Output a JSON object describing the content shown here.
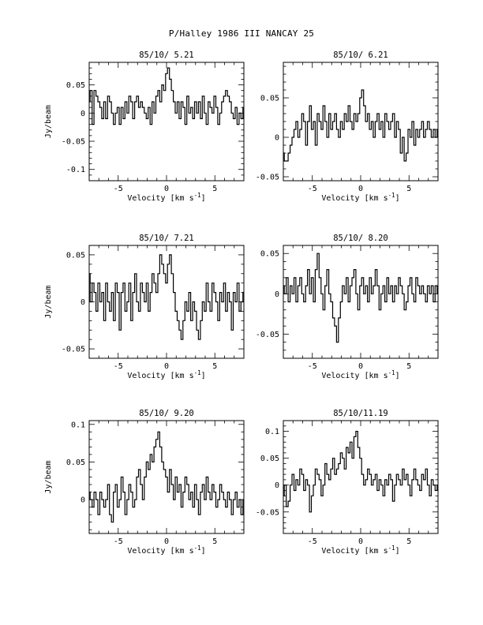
{
  "page": {
    "title": "P/Halley 1986 III   NANCAY     25"
  },
  "common": {
    "xlabel": "Velocity [km s",
    "xlabel_sup": "-1",
    "xlabel_close": "]",
    "ylabel": "Jy/beam"
  },
  "chart_data": [
    {
      "type": "line",
      "title": "85/10/ 5.21",
      "xlabel": "Velocity [km s-1]",
      "ylabel": "Jy/beam",
      "xlim": [
        -8,
        8
      ],
      "ylim": [
        -0.12,
        0.09
      ],
      "yticks": [
        0.05,
        0,
        -0.05,
        -0.1
      ],
      "ytick_labels": [
        "0.05",
        "0",
        "-0.05",
        "-0.1"
      ],
      "xticks": [
        -5,
        0,
        5
      ],
      "xtick_labels": [
        "-5",
        "0",
        "5"
      ],
      "series": [
        {
          "x0": -8,
          "dx": 0.2,
          "values": [
            0.02,
            0.04,
            -0.02,
            0.04,
            0.03,
            0.02,
            0.01,
            -0.01,
            0.02,
            -0.01,
            0.03,
            0.02,
            0.0,
            -0.02,
            0.0,
            0.01,
            -0.02,
            0.01,
            -0.01,
            0.02,
            0.0,
            0.03,
            0.02,
            -0.01,
            0.02,
            0.03,
            0.01,
            0.02,
            0.01,
            0.0,
            -0.01,
            0.01,
            -0.02,
            0.02,
            0.0,
            0.03,
            0.04,
            0.02,
            0.05,
            0.04,
            0.07,
            0.08,
            0.06,
            0.04,
            0.02,
            0.0,
            0.02,
            -0.01,
            0.02,
            0.01,
            -0.02,
            0.03,
            0.0,
            0.01,
            -0.01,
            0.02,
            0.0,
            0.02,
            -0.01,
            0.03,
            0.0,
            -0.02,
            0.02,
            0.01,
            0.0,
            0.03,
            0.01,
            -0.02,
            0.0,
            0.02,
            0.03,
            0.04,
            0.03,
            0.02,
            0.0,
            -0.01,
            0.01,
            -0.02,
            0.0,
            -0.01,
            0.01
          ]
        }
      ]
    },
    {
      "type": "line",
      "title": "85/10/ 6.21",
      "xlabel": "Velocity [km s-1]",
      "ylabel": "",
      "xlim": [
        -8,
        8
      ],
      "ylim": [
        -0.055,
        0.095
      ],
      "yticks": [
        0.05,
        0,
        -0.05
      ],
      "ytick_labels": [
        "0.05",
        "0",
        "-0.05"
      ],
      "xticks": [
        -5,
        0,
        5
      ],
      "xtick_labels": [
        "-5",
        "0",
        "5"
      ],
      "series": [
        {
          "x0": -8,
          "dx": 0.2,
          "values": [
            -0.02,
            -0.03,
            -0.03,
            -0.02,
            -0.01,
            0.0,
            0.01,
            0.02,
            0.0,
            0.01,
            0.03,
            0.02,
            -0.01,
            0.02,
            0.04,
            0.01,
            0.02,
            -0.01,
            0.03,
            0.02,
            0.01,
            0.04,
            0.02,
            0.0,
            0.03,
            0.01,
            0.02,
            0.03,
            0.01,
            0.0,
            0.02,
            0.01,
            0.03,
            0.02,
            0.04,
            0.02,
            0.01,
            0.03,
            0.02,
            0.03,
            0.05,
            0.06,
            0.04,
            0.02,
            0.03,
            0.01,
            0.02,
            0.0,
            0.02,
            0.03,
            0.01,
            0.02,
            0.0,
            0.03,
            0.02,
            0.01,
            0.02,
            0.03,
            0.0,
            0.02,
            0.01,
            -0.02,
            0.0,
            -0.03,
            -0.02,
            0.01,
            0.0,
            0.02,
            -0.01,
            0.01,
            0.0,
            0.01,
            0.02,
            0.0,
            0.01,
            0.02,
            0.01,
            0.0,
            0.01,
            0.0,
            0.01
          ]
        }
      ]
    },
    {
      "type": "line",
      "title": "85/10/ 7.21",
      "xlabel": "Velocity [km s-1]",
      "ylabel": "Jy/beam",
      "xlim": [
        -8,
        8
      ],
      "ylim": [
        -0.06,
        0.06
      ],
      "yticks": [
        0.05,
        0,
        -0.05
      ],
      "ytick_labels": [
        "0.05",
        "0",
        "-0.05"
      ],
      "xticks": [
        -5,
        0,
        5
      ],
      "xtick_labels": [
        "-5",
        "0",
        "5"
      ],
      "series": [
        {
          "x0": -8,
          "dx": 0.2,
          "values": [
            0.03,
            0.0,
            0.02,
            0.01,
            -0.01,
            0.02,
            0.0,
            0.01,
            -0.02,
            0.02,
            0.0,
            -0.01,
            0.01,
            -0.02,
            0.02,
            0.01,
            -0.03,
            0.01,
            0.02,
            -0.01,
            0.0,
            0.02,
            -0.02,
            0.01,
            0.03,
            0.0,
            -0.01,
            0.02,
            0.01,
            0.0,
            0.02,
            -0.01,
            0.01,
            0.03,
            0.02,
            0.01,
            0.03,
            0.05,
            0.04,
            0.03,
            0.02,
            0.04,
            0.05,
            0.03,
            0.01,
            -0.01,
            -0.02,
            -0.03,
            -0.04,
            -0.02,
            0.0,
            -0.01,
            0.01,
            -0.02,
            0.0,
            -0.01,
            -0.03,
            -0.04,
            -0.02,
            0.0,
            -0.01,
            0.02,
            0.0,
            -0.01,
            0.02,
            0.01,
            0.0,
            -0.02,
            0.01,
            0.0,
            0.02,
            -0.01,
            0.01,
            0.0,
            -0.03,
            0.01,
            0.0,
            0.02,
            -0.01,
            0.0,
            0.01
          ]
        }
      ]
    },
    {
      "type": "line",
      "title": "85/10/ 8.20",
      "xlabel": "Velocity [km s-1]",
      "ylabel": "",
      "xlim": [
        -8,
        8
      ],
      "ylim": [
        -0.08,
        0.06
      ],
      "yticks": [
        0.05,
        0,
        -0.05
      ],
      "ytick_labels": [
        "0.05",
        "0",
        "-0.05"
      ],
      "xticks": [
        -5,
        0,
        5
      ],
      "xtick_labels": [
        "-5",
        "0",
        "5"
      ],
      "series": [
        {
          "x0": -8,
          "dx": 0.2,
          "values": [
            0.01,
            0.0,
            0.02,
            -0.01,
            0.01,
            0.0,
            0.02,
            -0.01,
            0.01,
            0.02,
            0.0,
            -0.01,
            0.01,
            0.03,
            0.0,
            0.02,
            -0.01,
            0.03,
            0.05,
            0.02,
            0.0,
            -0.02,
            0.01,
            0.03,
            0.0,
            -0.01,
            -0.03,
            -0.04,
            -0.06,
            -0.03,
            -0.01,
            0.01,
            0.0,
            0.02,
            -0.01,
            0.01,
            0.02,
            0.03,
            0.0,
            -0.02,
            0.01,
            0.02,
            0.0,
            0.01,
            -0.01,
            0.02,
            0.0,
            0.01,
            0.03,
            0.01,
            -0.02,
            0.0,
            0.01,
            -0.01,
            0.02,
            0.0,
            0.01,
            -0.01,
            0.01,
            0.0,
            0.02,
            0.01,
            0.0,
            -0.02,
            -0.01,
            0.01,
            0.02,
            0.0,
            -0.01,
            0.02,
            0.01,
            0.0,
            0.01,
            0.0,
            -0.01,
            0.01,
            0.0,
            0.01,
            -0.01,
            0.01,
            0.0
          ]
        }
      ]
    },
    {
      "type": "line",
      "title": "85/10/ 9.20",
      "xlabel": "Velocity [km s-1]",
      "ylabel": "Jy/beam",
      "xlim": [
        -8,
        8
      ],
      "ylim": [
        -0.045,
        0.105
      ],
      "yticks": [
        0.1,
        0.05,
        0
      ],
      "ytick_labels": [
        "0.1",
        "0.05",
        "0"
      ],
      "xticks": [
        -5,
        0,
        5
      ],
      "xtick_labels": [
        "-5",
        "0",
        "5"
      ],
      "series": [
        {
          "x0": -8,
          "dx": 0.2,
          "values": [
            0.01,
            0.0,
            -0.01,
            0.01,
            0.0,
            -0.02,
            0.01,
            0.0,
            -0.01,
            0.0,
            0.02,
            -0.02,
            -0.03,
            0.01,
            0.02,
            -0.01,
            0.0,
            0.03,
            0.01,
            -0.02,
            0.0,
            0.02,
            0.01,
            -0.01,
            0.0,
            0.03,
            0.04,
            0.02,
            0.0,
            0.03,
            0.05,
            0.04,
            0.06,
            0.05,
            0.07,
            0.08,
            0.09,
            0.07,
            0.05,
            0.04,
            0.03,
            0.01,
            0.04,
            0.02,
            0.0,
            0.03,
            0.01,
            0.02,
            -0.01,
            0.01,
            0.03,
            0.02,
            0.0,
            0.01,
            -0.01,
            0.02,
            0.0,
            -0.02,
            0.01,
            0.02,
            0.0,
            0.03,
            0.01,
            0.0,
            0.02,
            0.01,
            -0.01,
            0.0,
            0.02,
            0.01,
            0.0,
            -0.01,
            0.01,
            0.0,
            -0.02,
            0.0,
            0.01,
            -0.01,
            0.0,
            -0.02,
            0.0
          ]
        }
      ]
    },
    {
      "type": "line",
      "title": "85/10/11.19",
      "xlabel": "Velocity [km s-1]",
      "ylabel": "",
      "xlim": [
        -8,
        8
      ],
      "ylim": [
        -0.09,
        0.12
      ],
      "yticks": [
        0.1,
        0.05,
        0,
        -0.05
      ],
      "ytick_labels": [
        "0.1",
        "0.05",
        "0",
        "-0.05"
      ],
      "xticks": [
        -5,
        0,
        5
      ],
      "xtick_labels": [
        "-5",
        "0",
        "5"
      ],
      "series": [
        {
          "x0": -8,
          "dx": 0.2,
          "values": [
            -0.02,
            0.0,
            -0.04,
            -0.03,
            0.0,
            0.02,
            -0.01,
            0.01,
            0.0,
            0.03,
            0.02,
            -0.01,
            0.01,
            0.0,
            -0.05,
            -0.02,
            0.0,
            0.03,
            0.02,
            0.01,
            -0.02,
            0.0,
            0.04,
            0.02,
            0.01,
            0.03,
            0.05,
            0.02,
            0.03,
            0.04,
            0.06,
            0.05,
            0.03,
            0.07,
            0.06,
            0.08,
            0.05,
            0.09,
            0.1,
            0.07,
            0.05,
            0.02,
            0.0,
            0.01,
            0.03,
            0.02,
            0.0,
            0.01,
            0.02,
            -0.01,
            0.01,
            0.0,
            -0.02,
            0.01,
            0.0,
            0.02,
            0.01,
            -0.03,
            0.0,
            0.02,
            0.01,
            0.0,
            0.03,
            0.01,
            0.02,
            0.0,
            -0.02,
            0.01,
            0.03,
            0.01,
            0.0,
            -0.01,
            0.02,
            0.01,
            0.03,
            0.0,
            -0.02,
            0.01,
            0.0,
            -0.01,
            0.0
          ]
        }
      ]
    }
  ]
}
